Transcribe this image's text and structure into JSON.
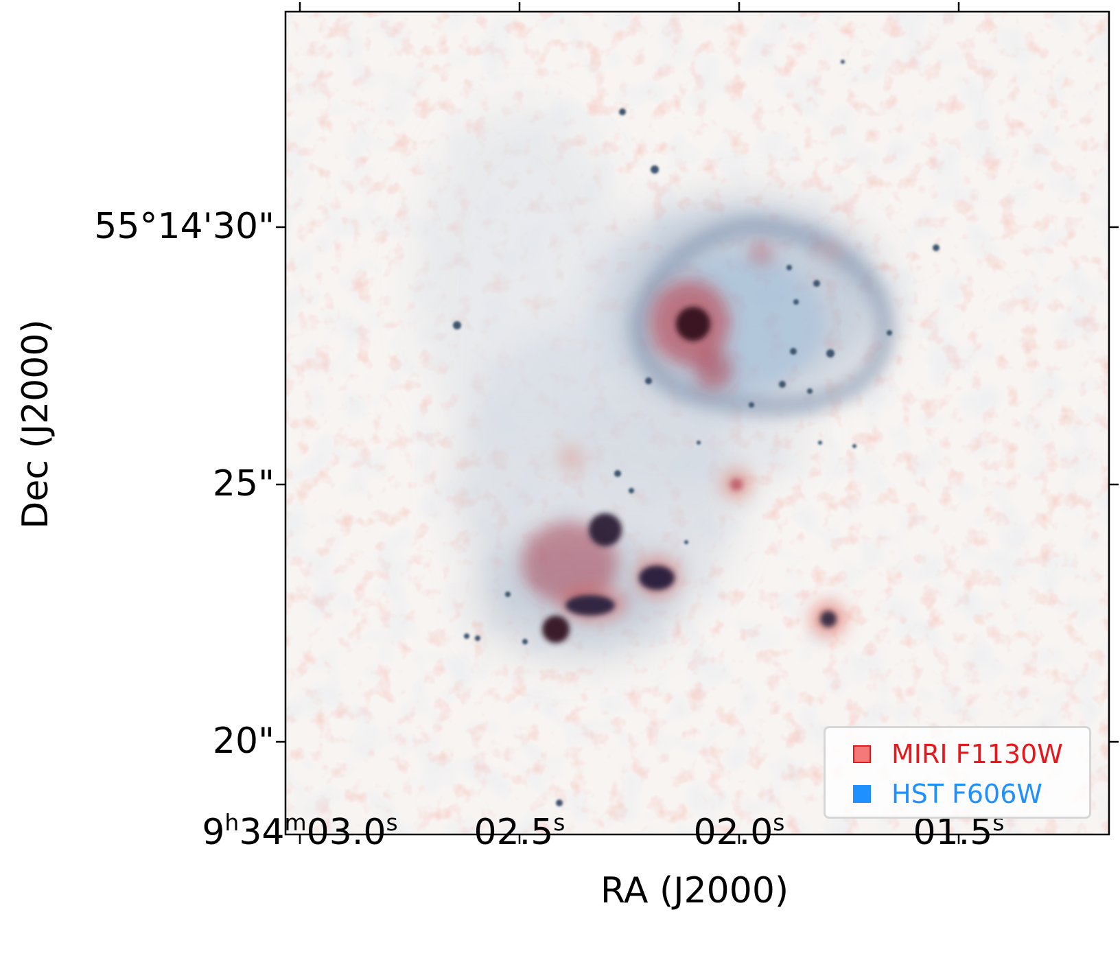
{
  "axes": {
    "xlabel": "RA (J2000)",
    "ylabel": "Dec (J2000)",
    "xticks": [
      {
        "main": "9",
        "s1": "h",
        "m1": "34",
        "s2": "m",
        "m2": "03.0",
        "s3": "s"
      },
      {
        "main": "02.5",
        "s3": "s"
      },
      {
        "main": "02.0",
        "s3": "s"
      },
      {
        "main": "01.5",
        "s3": "s"
      }
    ],
    "yticks": [
      "55°14'30\"",
      "25\"",
      "20\""
    ]
  },
  "legend": {
    "items": [
      {
        "label": "MIRI F1130W",
        "color": "#e8171c",
        "swatch": "#f6797a"
      },
      {
        "label": "HST F606W",
        "color": "#1e90ff",
        "swatch": "#1e90ff"
      }
    ]
  },
  "colors": {
    "background": "#f7f4f2",
    "miri_red": "#b02030",
    "hst_blue": "#5e7ea8",
    "dark_core": "#2b1a2e"
  }
}
